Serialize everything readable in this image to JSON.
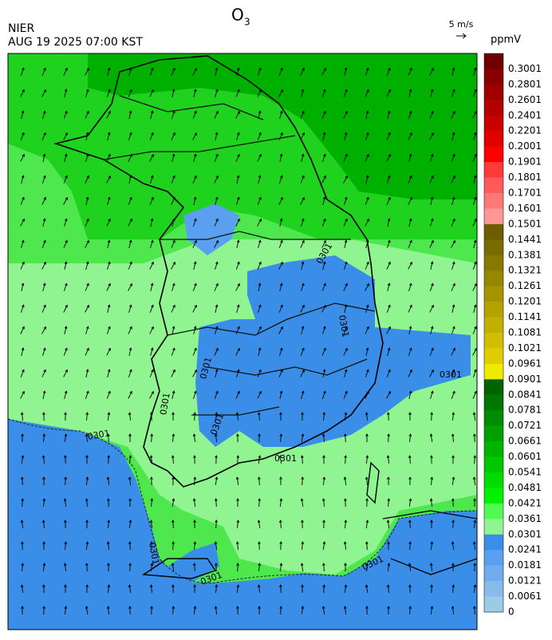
{
  "header": {
    "title": {
      "main": "O",
      "subscript": "3"
    },
    "agency": "NIER",
    "datetime": "AUG 19 2025 07:00 KST",
    "wind_scale": "5 m/s"
  },
  "colorbar": {
    "unit": "ppmV",
    "labels": [
      "0.3001",
      "0.2801",
      "0.2601",
      "0.2401",
      "0.2201",
      "0.2001",
      "0.1901",
      "0.1801",
      "0.1701",
      "0.1601",
      "0.1501",
      "0.1441",
      "0.1381",
      "0.1321",
      "0.1261",
      "0.1201",
      "0.1141",
      "0.1081",
      "0.1021",
      "0.0961",
      "0.0901",
      "0.0841",
      "0.0781",
      "0.0721",
      "0.0661",
      "0.0601",
      "0.0541",
      "0.0481",
      "0.0421",
      "0.0361",
      "0.0301",
      "0.0241",
      "0.0181",
      "0.0121",
      "0.0061",
      "0"
    ],
    "colors": [
      "#6e0000",
      "#8a0000",
      "#a00000",
      "#b40000",
      "#c80000",
      "#e00000",
      "#ff0000",
      "#ff3a3a",
      "#ff5a5a",
      "#ff7878",
      "#ff9696",
      "#6b5d00",
      "#7a6b00",
      "#887800",
      "#978600",
      "#a59400",
      "#b4a200",
      "#c2b000",
      "#d0bf00",
      "#dfcd00",
      "#f0ea00",
      "#006400",
      "#007800",
      "#008c00",
      "#00a000",
      "#00b400",
      "#00c800",
      "#00dc00",
      "#00f000",
      "#50fa50",
      "#90f490",
      "#3a8ee8",
      "#5a9ff0",
      "#70acee",
      "#86bbea",
      "#9ccbe6"
    ]
  },
  "map": {
    "contour_labels": [
      "0301",
      "0301",
      "0301",
      "0301",
      "0301",
      "0301",
      "0301",
      "0301",
      "0301",
      "0301",
      "0301"
    ]
  }
}
